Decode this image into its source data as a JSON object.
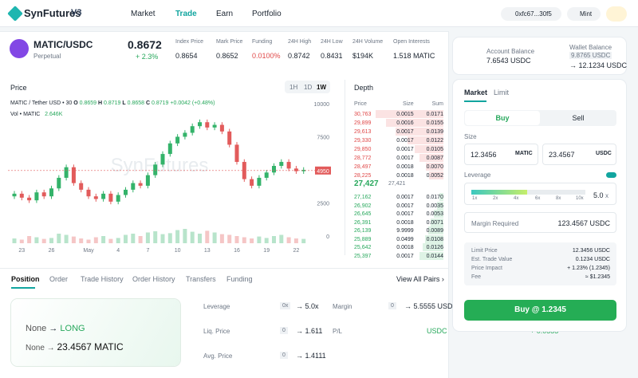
{
  "header": {
    "logo": "SynFutures",
    "version": "V3",
    "nav": [
      "Market",
      "Trade",
      "Earn",
      "Portfolio"
    ],
    "address": "0xfc67...30f5",
    "mint": "Mint"
  },
  "ticker": {
    "pair": "MATIC/USDC",
    "market": "Perpetual",
    "price": "0.8672",
    "change": "+ 2.3%",
    "stats": [
      {
        "label": "Index Price",
        "value": "0.8654"
      },
      {
        "label": "Mark Price",
        "value": "0.8652"
      },
      {
        "label": "Funding",
        "value": "0.0100%"
      },
      {
        "label": "24H High",
        "value": "0.8742"
      },
      {
        "label": "24H Low",
        "value": "0.8431"
      },
      {
        "label": "24H Volume",
        "value": "$194K"
      },
      {
        "label": "Open Interests",
        "value": "1.518 MATIC"
      }
    ]
  },
  "account": {
    "account_label": "Account Balance",
    "account_value": "7.6543 USDC",
    "wallet_label": "Wallet Balance",
    "wallet_value": "9.8765 USDC",
    "wallet_after": "→ 12.1234 USDC"
  },
  "price_chart": {
    "type": "candlestick",
    "title": "Price",
    "intervals": [
      "1H",
      "1D",
      "1W"
    ],
    "legend": "MATIC / Tether USD • 30",
    "ohlc": [
      {
        "k": "O",
        "v": "0.8659"
      },
      {
        "k": "H",
        "v": "0.8719"
      },
      {
        "k": "L",
        "v": "0.8658"
      },
      {
        "k": "C",
        "v": "0.8719"
      }
    ],
    "change": "+0.0042 (+0.48%)",
    "vol_label": "Vol • MATIC",
    "vol_value": "2.646K",
    "watermark": "SynFutures",
    "last_price": 4950,
    "ylim": [
      0,
      10000
    ],
    "yticks": [
      0,
      2500,
      5000,
      7500,
      10000
    ],
    "volume_lim": [
      0,
      100
    ],
    "categories": [
      null,
      "23",
      null,
      null,
      null,
      "26",
      null,
      null,
      null,
      null,
      "May",
      null,
      null,
      null,
      "4",
      null,
      null,
      null,
      "7",
      null,
      null,
      null,
      "10",
      null,
      null,
      null,
      "13",
      null,
      null,
      null,
      "16",
      null,
      null,
      null,
      "19",
      null,
      null,
      null,
      "22",
      null
    ],
    "open": [
      3000,
      3200,
      2900,
      2700,
      3300,
      3000,
      3600,
      4400,
      5200,
      4000,
      3500,
      3000,
      2800,
      3200,
      2600,
      3100,
      3500,
      4000,
      3800,
      4600,
      5400,
      6200,
      7000,
      7500,
      7800,
      8300,
      8600,
      8200,
      8400,
      7900,
      6900,
      5600,
      4300,
      3800,
      4400,
      4800,
      5300,
      5600,
      5100,
      4900
    ],
    "close": [
      3200,
      2900,
      2700,
      3300,
      3000,
      3600,
      4400,
      5200,
      4000,
      3500,
      3000,
      2800,
      3200,
      2600,
      3100,
      3500,
      4000,
      3800,
      4600,
      5400,
      6200,
      7000,
      7500,
      7800,
      8300,
      8600,
      8200,
      8400,
      7900,
      6900,
      5600,
      4300,
      3800,
      4400,
      4800,
      5300,
      5600,
      5100,
      4900,
      5000
    ],
    "high": [
      3400,
      3400,
      3100,
      3500,
      3500,
      3800,
      4600,
      5400,
      5400,
      4200,
      3700,
      3200,
      3400,
      3400,
      3300,
      3700,
      4200,
      4200,
      4800,
      5600,
      6400,
      7200,
      7700,
      8000,
      8500,
      8800,
      8800,
      8600,
      8600,
      8100,
      7100,
      5800,
      4500,
      4600,
      5000,
      5500,
      5800,
      5800,
      5300,
      5200
    ],
    "low": [
      2800,
      2700,
      2500,
      2500,
      2800,
      2800,
      3400,
      4200,
      3800,
      3300,
      2800,
      2600,
      2600,
      2400,
      2400,
      2900,
      3300,
      3600,
      3600,
      4400,
      5200,
      6000,
      6800,
      7300,
      7600,
      8100,
      8000,
      8000,
      7700,
      6700,
      5400,
      4100,
      3600,
      3600,
      4200,
      4600,
      5100,
      4900,
      4700,
      4700
    ],
    "volume": [
      20,
      15,
      30,
      25,
      18,
      22,
      40,
      35,
      28,
      20,
      15,
      25,
      30,
      18,
      22,
      35,
      40,
      30,
      45,
      50,
      38,
      42,
      55,
      60,
      48,
      40,
      52,
      45,
      38,
      35,
      30,
      25,
      20,
      28,
      22,
      30,
      35,
      25,
      20,
      18
    ]
  },
  "depth": {
    "title": "Depth",
    "headers": [
      "Price",
      "Size",
      "Sum"
    ],
    "asks": [
      [
        "30,763",
        "0.0015",
        "0.0171"
      ],
      [
        "29,899",
        "0.0016",
        "0.0155"
      ],
      [
        "29,613",
        "0.0017",
        "0.0139"
      ],
      [
        "29,330",
        "0.0017",
        "0.0122"
      ],
      [
        "29,850",
        "0.0017",
        "0.0105"
      ],
      [
        "28,772",
        "0.0017",
        "0.0087"
      ],
      [
        "28,497",
        "0.0018",
        "0.0070"
      ],
      [
        "28,225",
        "0.0018",
        "0.0052"
      ]
    ],
    "mid": "27,427",
    "mid_index": "27,421",
    "bids": [
      [
        "27,162",
        "0.0017",
        "0.0170"
      ],
      [
        "26,902",
        "0.0017",
        "0.0035"
      ],
      [
        "26,645",
        "0.0017",
        "0.0053"
      ],
      [
        "26,391",
        "0.0018",
        "0.0071"
      ],
      [
        "26,139",
        "9.9999",
        "0.0089"
      ],
      [
        "25,889",
        "0.0499",
        "0.0108"
      ],
      [
        "25,642",
        "0.0018",
        "0.0126"
      ],
      [
        "25,397",
        "0.0017",
        "0.0144"
      ]
    ]
  },
  "tabs": {
    "items": [
      "Position",
      "Order",
      "Trade History",
      "Order History",
      "Transfers",
      "Funding"
    ],
    "view_all": "View All Pairs ›"
  },
  "position": {
    "side_from": "None",
    "side_to": "LONG",
    "size_from": "None",
    "size_to": "23.4567 MATIC",
    "details": [
      {
        "label": "Leverage",
        "from": "0x",
        "to": "→ 5.0x"
      },
      {
        "label": "Liq. Price",
        "from": "0",
        "to": "→ 1.611"
      },
      {
        "label": "Avg. Price",
        "from": "0",
        "to": "→ 1.4111"
      },
      {
        "label": "Margin",
        "from": "0",
        "to": "→ 5.5555 USDC"
      },
      {
        "label": "P/L",
        "from": "+ 0.0555",
        "to": "USDC"
      }
    ]
  },
  "order": {
    "types": [
      "Market",
      "Limit"
    ],
    "sides": [
      "Buy",
      "Sell"
    ],
    "size_label": "Size",
    "size_base": "12.3456",
    "base_unit": "MATIC",
    "size_quote": "23.4567",
    "quote_unit": "USDC",
    "leverage_label": "Leverage",
    "leverage_ticks": [
      "1x",
      "2x",
      "4x",
      "6x",
      "8x",
      "10x"
    ],
    "leverage_value": "5.0",
    "leverage_unit": "x",
    "margin_label": "Margin Required",
    "margin_value": "123.4567 USDC",
    "summary": [
      {
        "label": "Limit Price",
        "value": "12.3456 USDC"
      },
      {
        "label": "Est. Trade Value",
        "value": "0.1234 USDC"
      },
      {
        "label": "Price Impact",
        "value": "+ 1.23% (1.2345)"
      },
      {
        "label": "Fee",
        "value": "≈ $1.2345"
      }
    ],
    "button": "Buy @ 1.2345"
  }
}
